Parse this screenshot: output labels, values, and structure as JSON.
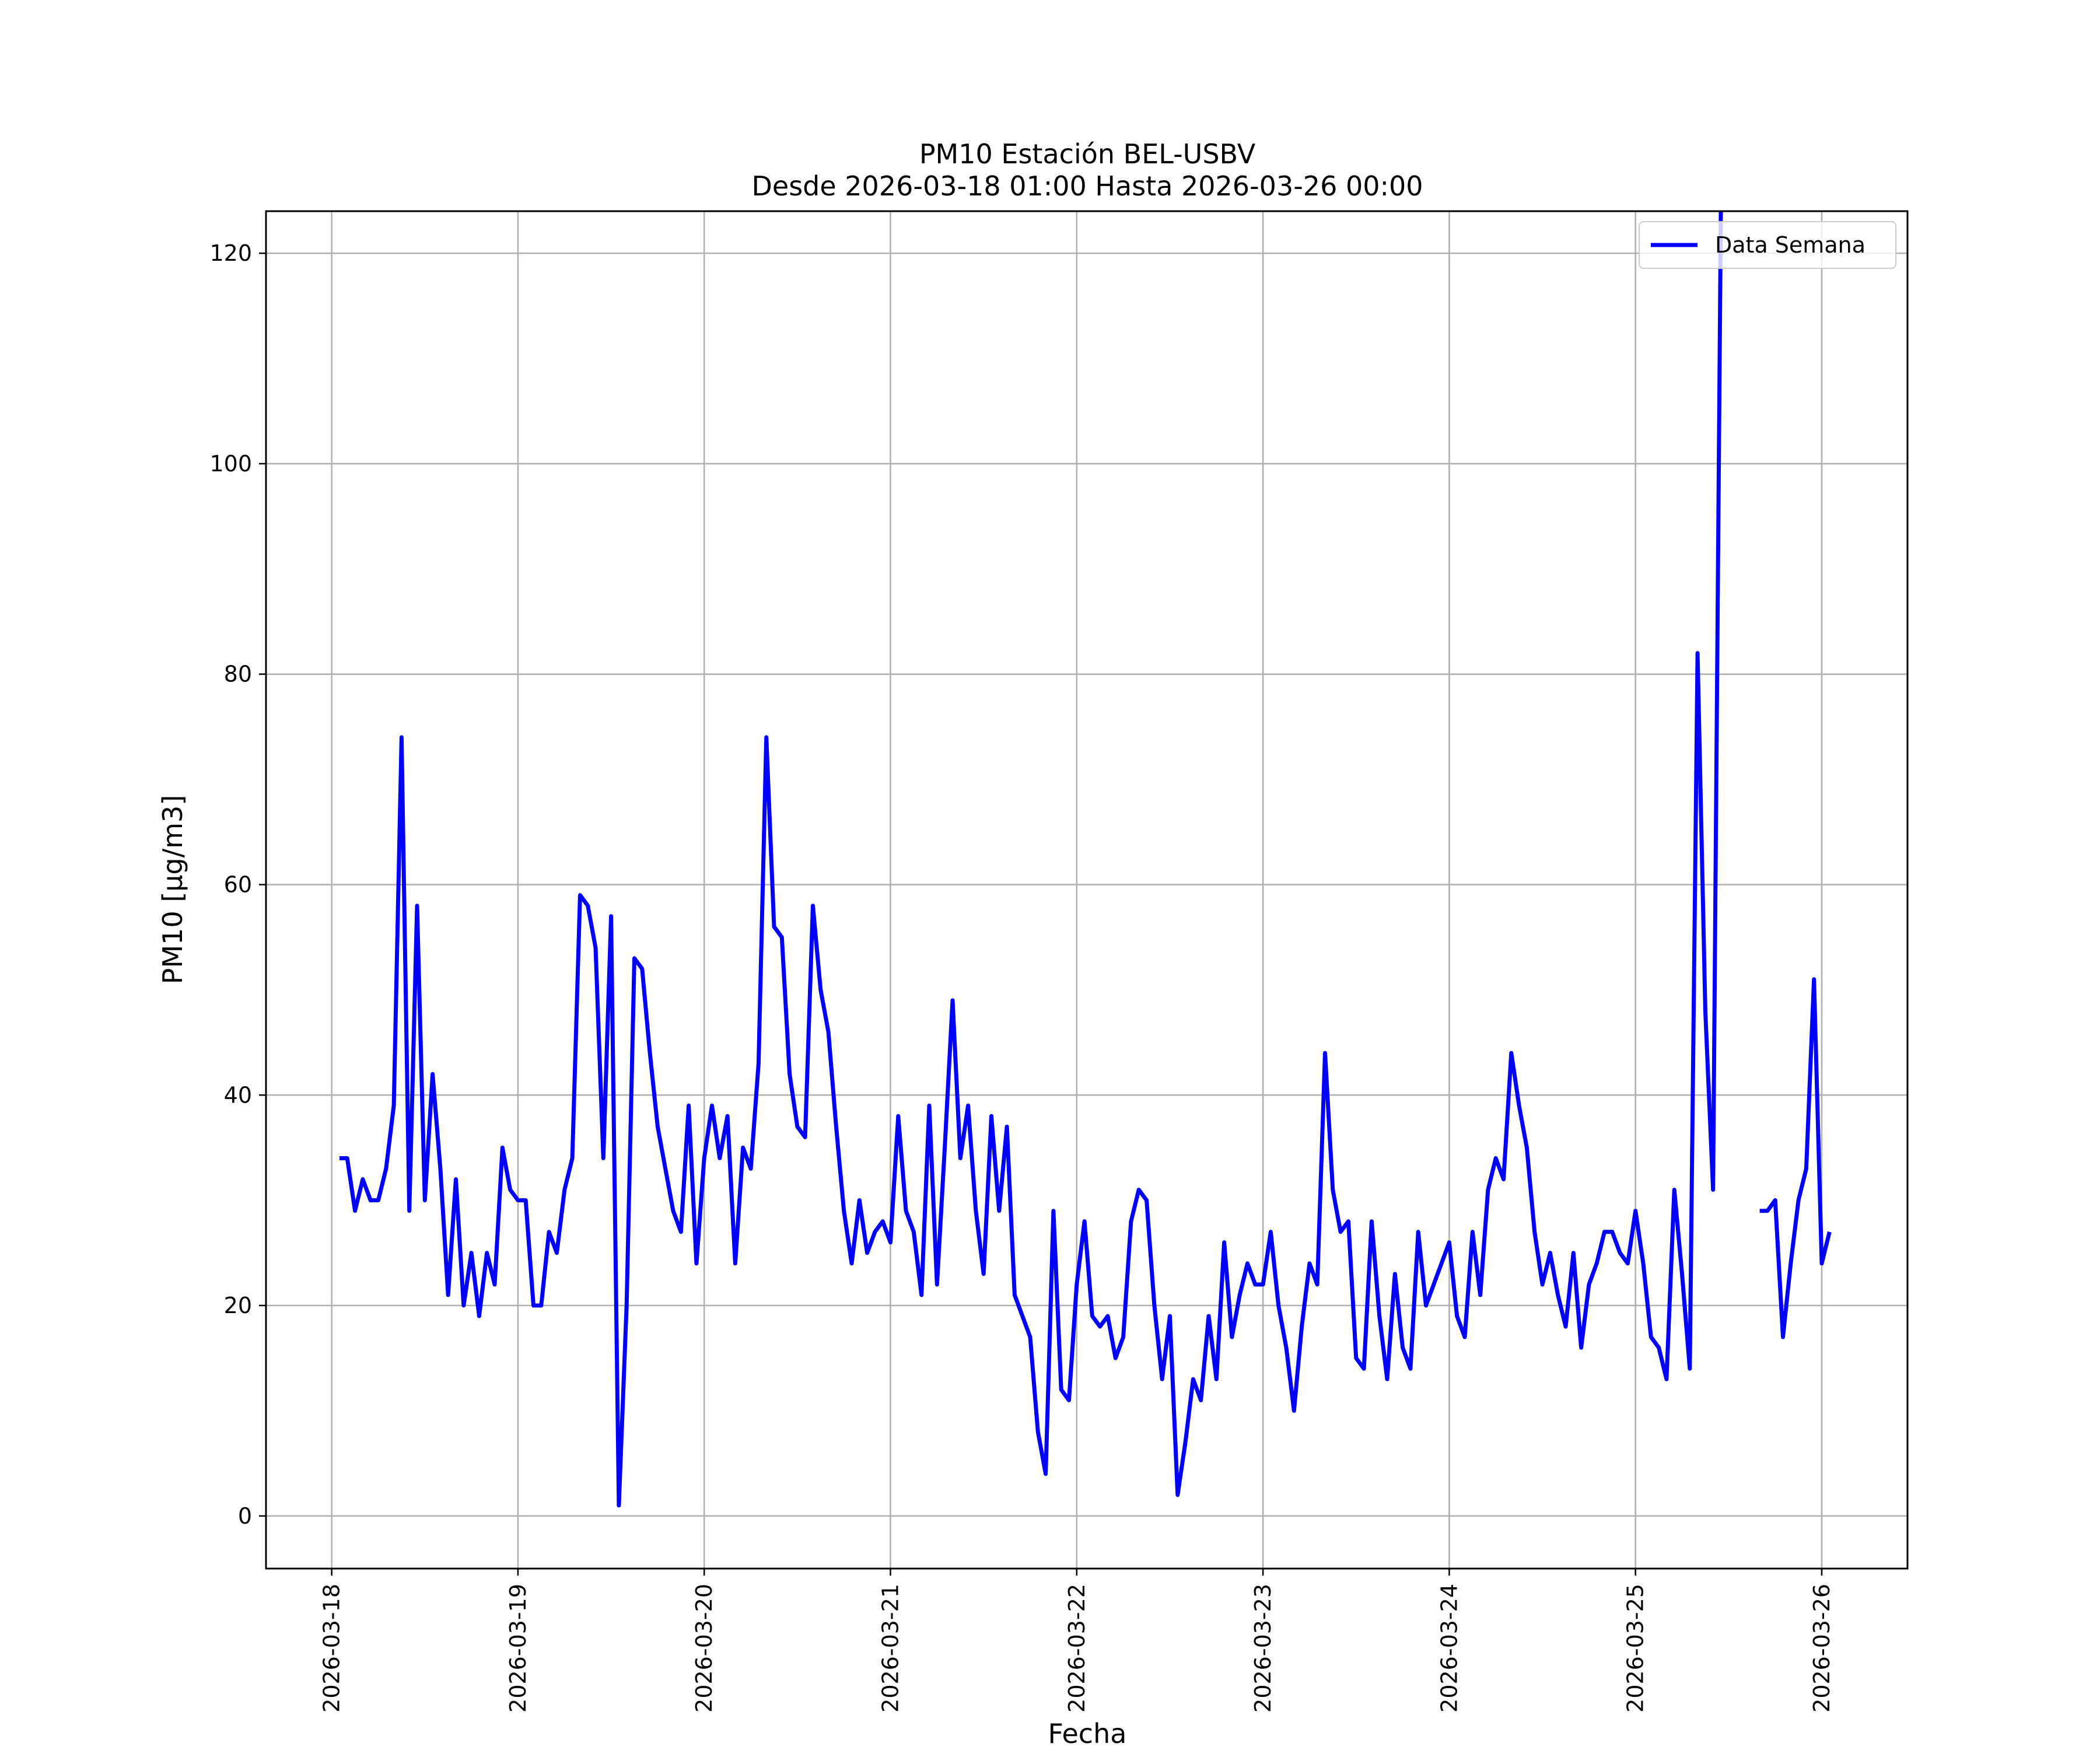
{
  "chart_data": {
    "type": "line",
    "title": "PM10 Estación BEL-USBV",
    "subtitle": "Desde 2026-03-18 01:00 Hasta 2026-03-26 00:00",
    "xlabel": "Fecha",
    "ylabel": "PM10 [μg/m3]",
    "x_start": "2026-03-18 01:00",
    "x_step_hours": 1,
    "xlim": [
      "2026-03-17 15:32",
      "2026-03-26 11:03"
    ],
    "ylim": [
      -5,
      124
    ],
    "grid": true,
    "legend_position": "top-right",
    "x_ticks": [
      "2026-03-18",
      "2026-03-19",
      "2026-03-20",
      "2026-03-21",
      "2026-03-22",
      "2026-03-23",
      "2026-03-24",
      "2026-03-25",
      "2026-03-26"
    ],
    "y_ticks": [
      0,
      20,
      40,
      60,
      80,
      100,
      120
    ],
    "series": [
      {
        "name": "Data Semana",
        "color": "#0000ff",
        "values": [
          34,
          34,
          29,
          32,
          30,
          30,
          33,
          39,
          74,
          29,
          58,
          30,
          42,
          33,
          21,
          32,
          20,
          25,
          19,
          25,
          22,
          35,
          31,
          30,
          30,
          20,
          20,
          27,
          25,
          31,
          34,
          59,
          58,
          54,
          34,
          57,
          1,
          20,
          53,
          52,
          44,
          37,
          33,
          29,
          27,
          39,
          24,
          34,
          39,
          34,
          38,
          24,
          35,
          33,
          43,
          74,
          56,
          55,
          42,
          37,
          36,
          58,
          50,
          46,
          37,
          29,
          24,
          30,
          25,
          27,
          28,
          26,
          38,
          29,
          27,
          21,
          39,
          22,
          35,
          49,
          34,
          39,
          29,
          23,
          38,
          29,
          37,
          21,
          19,
          17,
          8,
          4,
          29,
          12,
          11,
          22,
          28,
          19,
          18,
          19,
          15,
          17,
          28,
          31,
          30,
          20,
          13,
          19,
          2,
          7,
          13,
          11,
          19,
          13,
          26,
          17,
          21,
          24,
          22,
          22,
          27,
          20,
          16,
          10,
          18,
          24,
          22,
          44,
          31,
          27,
          28,
          15,
          14,
          28,
          19,
          13,
          23,
          16,
          14,
          27,
          20,
          22,
          24,
          26,
          19,
          17,
          27,
          21,
          31,
          34,
          32,
          44,
          39,
          35,
          27,
          22,
          25,
          21,
          18,
          25,
          16,
          22,
          24,
          27,
          27,
          25,
          24,
          29,
          24,
          17,
          16,
          13,
          31,
          23,
          14,
          82,
          48,
          31,
          124,
          null,
          null,
          null,
          null,
          29,
          29,
          30,
          17,
          24,
          30,
          33,
          51,
          24,
          27
        ]
      }
    ]
  }
}
